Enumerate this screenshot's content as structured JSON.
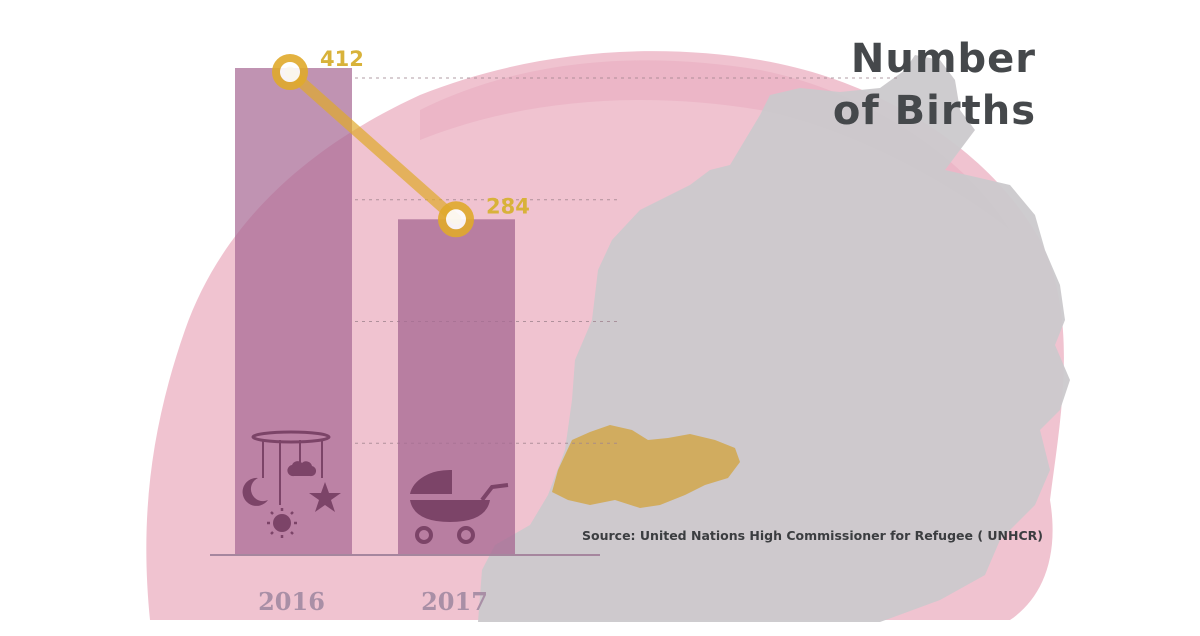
{
  "title_lines": [
    "Number",
    "of Births"
  ],
  "source": "Source: United Nations High Commissioner for Refugee ( UNHCR)",
  "colors": {
    "bar": "#a86a94",
    "line": "#e0aa2c",
    "background_blob": "#eebccb",
    "map": "#cbc9cc",
    "highlight_region": "#d2a23a"
  },
  "icons": [
    "baby-mobile-icon",
    "baby-stroller-icon"
  ],
  "chart_data": {
    "type": "bar",
    "categories": [
      "2016",
      "2017"
    ],
    "values": [
      412,
      284
    ],
    "data_labels": [
      "412",
      "284"
    ],
    "title": "",
    "xlabel": "",
    "ylabel": "",
    "ylim": [
      0,
      430
    ],
    "overlay_line": true,
    "grid": "dashed"
  }
}
